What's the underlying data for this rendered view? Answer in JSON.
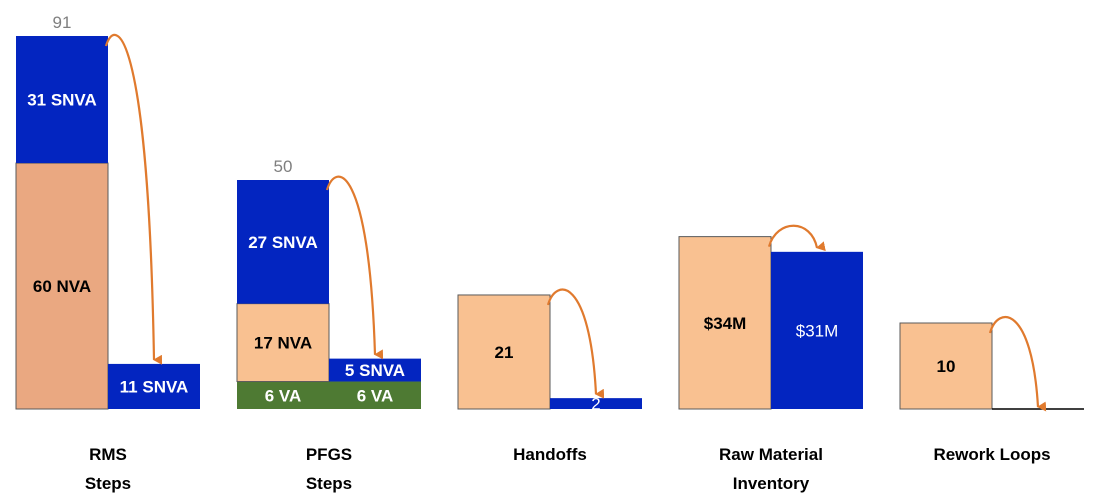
{
  "chart_data": {
    "type": "bar",
    "title": "",
    "xlabel": "",
    "ylabel": "",
    "colors": {
      "NVA": "#f9c191",
      "NVA_dark": "#eaa881",
      "SNVA": "#0325c0",
      "VA": "#4e7a33",
      "arrow": "#e07a2e"
    },
    "groups": [
      {
        "category_lines": [
          "RMS",
          "Steps"
        ],
        "total_label": "91",
        "before": [
          {
            "value": 60,
            "label": "60 NVA",
            "color": "NVA_dark",
            "text_color": "#000000",
            "bold": true
          },
          {
            "value": 31,
            "label": "31 SNVA",
            "color": "SNVA",
            "text_color": "#ffffff",
            "bold": true
          }
        ],
        "after": [
          {
            "value": 11,
            "label": "11 SNVA",
            "color": "SNVA",
            "text_color": "#ffffff",
            "bold": true
          }
        ]
      },
      {
        "category_lines": [
          "PFGS",
          "Steps"
        ],
        "total_label": "50",
        "before": [
          {
            "value": 6,
            "label": "6 VA",
            "color": "VA",
            "text_color": "#ffffff",
            "bold": true
          },
          {
            "value": 17,
            "label": "17 NVA",
            "color": "NVA",
            "text_color": "#000000",
            "bold": true
          },
          {
            "value": 27,
            "label": "27 SNVA",
            "color": "SNVA",
            "text_color": "#ffffff",
            "bold": true
          }
        ],
        "after": [
          {
            "value": 6,
            "label": "6 VA",
            "color": "VA",
            "text_color": "#ffffff",
            "bold": true
          },
          {
            "value": 5,
            "label": "5 SNVA",
            "color": "SNVA",
            "text_color": "#ffffff",
            "bold": true
          }
        ]
      },
      {
        "category_lines": [
          "Handoffs"
        ],
        "total_label": "",
        "before": [
          {
            "value": 21,
            "label": "21",
            "color": "NVA",
            "text_color": "#000000",
            "bold": true
          }
        ],
        "after": [
          {
            "value": 2,
            "label": "2",
            "color": "SNVA",
            "text_color": "#ffffff",
            "bold": false
          }
        ]
      },
      {
        "category_lines": [
          "Raw Material",
          "Inventory"
        ],
        "total_label": "",
        "before": [
          {
            "value": 34,
            "label": "$34M",
            "color": "NVA",
            "text_color": "#000000",
            "bold": true
          }
        ],
        "after": [
          {
            "value": 31,
            "label": "$31M",
            "color": "SNVA",
            "text_color": "#ffffff",
            "bold": false
          }
        ]
      },
      {
        "category_lines": [
          "Rework Loops"
        ],
        "total_label": "",
        "before": [
          {
            "value": 10,
            "label": "10",
            "color": "NVA",
            "text_color": "#000000",
            "bold": true
          }
        ],
        "after": [
          {
            "value": 0,
            "label": "",
            "color": "SNVA",
            "text_color": "#ffffff",
            "bold": false
          }
        ]
      }
    ]
  }
}
